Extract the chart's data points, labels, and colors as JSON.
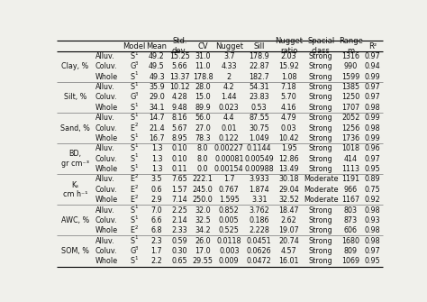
{
  "headers": [
    "",
    "",
    "Model",
    "Mean",
    "Std.\ndev.",
    "CV",
    "Nugget",
    "Sill",
    "Nugget\nratio",
    "Spacial\nclass",
    "Range\nm",
    "R²"
  ],
  "rows": [
    [
      "Clay, %",
      "Alluv.",
      "S1",
      "49.2",
      "15.25",
      "31.0",
      "3.7",
      "178.9",
      "2.03",
      "Strong",
      "1316",
      "0.97"
    ],
    [
      "",
      "Coluv.",
      "G3",
      "49.5",
      "5.66",
      "11.0",
      "4.33",
      "22.87",
      "15.92",
      "Strong",
      "990",
      "0.94"
    ],
    [
      "",
      "Whole",
      "S1",
      "49.3",
      "13.37",
      "178.8",
      "2",
      "182.7",
      "1.08",
      "Strong",
      "1599",
      "0.99"
    ],
    [
      "Silt, %",
      "Alluv.",
      "S1",
      "35.9",
      "10.12",
      "28.0",
      "4.2",
      "54.31",
      "7.18",
      "Strong",
      "1385",
      "0.97"
    ],
    [
      "",
      "Coluv.",
      "G3",
      "29.0",
      "4.28",
      "15.0",
      "1.44",
      "23.83",
      "5.70",
      "Strong",
      "1250",
      "0.97"
    ],
    [
      "",
      "Whole",
      "S1",
      "34.1",
      "9.48",
      "89.9",
      "0.023",
      "0.53",
      "4.16",
      "Strong",
      "1707",
      "0.98"
    ],
    [
      "Sand, %",
      "Alluv.",
      "S1",
      "14.7",
      "8.16",
      "56.0",
      "4.4",
      "87.55",
      "4.79",
      "Strong",
      "2052",
      "0.99"
    ],
    [
      "",
      "Coluv.",
      "E2",
      "21.4",
      "5.67",
      "27.0",
      "0.01",
      "30.75",
      "0.03",
      "Strong",
      "1256",
      "0.98"
    ],
    [
      "",
      "Whole",
      "S1",
      "16.7",
      "8.95",
      "78.3",
      "0.122",
      "1.049",
      "10.42",
      "Strong",
      "1736",
      "0.99"
    ],
    [
      "BD,\ngr cm⁻³",
      "Alluv.",
      "S1",
      "1.3",
      "0.10",
      "8.0",
      "0.00227",
      "0.1144",
      "1.95",
      "Strong",
      "1018",
      "0.96"
    ],
    [
      "",
      "Coluv.",
      "S1",
      "1.3",
      "0.10",
      "8.0",
      "0.00081",
      "0.00549",
      "12.86",
      "Strong",
      "414",
      "0.97"
    ],
    [
      "",
      "Whole",
      "S1",
      "1.3",
      "0.11",
      "0.0",
      "0.00154",
      "0.00988",
      "13.49",
      "Strong",
      "1113",
      "0.95"
    ],
    [
      "Ks\ncm h⁻¹",
      "Alluv.",
      "E2",
      "3.5",
      "7.65",
      "222.1",
      "1.7",
      "3.933",
      "30.18",
      "Moderate",
      "1191",
      "0.89"
    ],
    [
      "",
      "Coluv.",
      "E2",
      "0.6",
      "1.57",
      "245.0",
      "0.767",
      "1.874",
      "29.04",
      "Moderate",
      "966",
      "0.75"
    ],
    [
      "",
      "Whole",
      "E2",
      "2.9",
      "7.14",
      "250.0",
      "1.595",
      "3.31",
      "32.52",
      "Moderate",
      "1167",
      "0.92"
    ],
    [
      "AWC, %",
      "Alluv.",
      "S1",
      "7.0",
      "2.25",
      "32.0",
      "0.852",
      "3.762",
      "18.47",
      "Strong",
      "803",
      "0.98"
    ],
    [
      "",
      "Coluv.",
      "S1",
      "6.6",
      "2.14",
      "32.5",
      "0.005",
      "0.186",
      "2.62",
      "Strong",
      "873",
      "0.93"
    ],
    [
      "",
      "Whole",
      "E2",
      "6.8",
      "2.33",
      "34.2",
      "0.525",
      "2.228",
      "19.07",
      "Strong",
      "606",
      "0.98"
    ],
    [
      "SOM, %",
      "Alluv.",
      "S1",
      "2.3",
      "0.59",
      "26.0",
      "0.0118",
      "0.0451",
      "20.74",
      "Strong",
      "1680",
      "0.98"
    ],
    [
      "",
      "Coluv.",
      "G3",
      "1.7",
      "0.30",
      "17.0",
      "0.003",
      "0.0626",
      "4.57",
      "Strong",
      "809",
      "0.97"
    ],
    [
      "",
      "Whole",
      "S1",
      "2.2",
      "0.65",
      "29.55",
      "0.009",
      "0.0472",
      "16.01",
      "Strong",
      "1069",
      "0.95"
    ]
  ],
  "group_starts": [
    0,
    3,
    6,
    9,
    12,
    15,
    18
  ],
  "group_labels": [
    "Clay, %",
    "Silt, %",
    "Sand, %",
    "BD,\ngr cm⁻³",
    "Kₛ\ncm h⁻¹",
    "AWC, %",
    "SOM, %"
  ],
  "group_separators": [
    3,
    6,
    9,
    12,
    15,
    18
  ],
  "bg_color": "#f0f0eb",
  "line_color": "#777777",
  "text_color": "#111111",
  "font_size": 5.8,
  "header_font_size": 6.0
}
